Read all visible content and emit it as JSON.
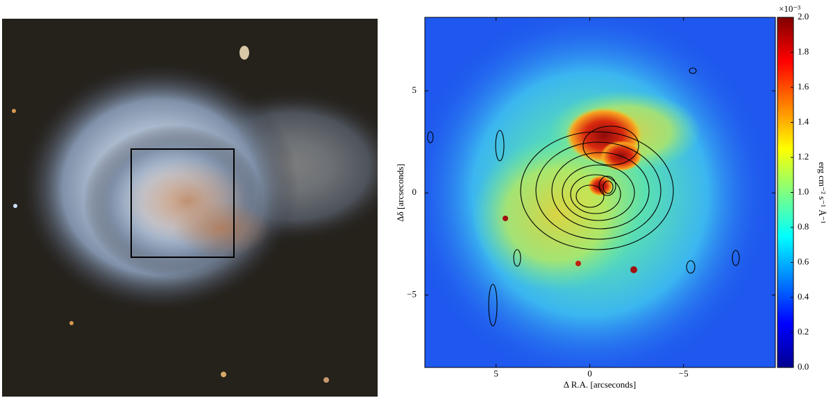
{
  "chart_data": {
    "type": "image",
    "xlabel": "Δ R.A. [arcseconds]",
    "ylabel": "Δδ [arcseconds]",
    "xlim": [
      8.8,
      -9.9
    ],
    "ylim": [
      -8.55,
      8.6
    ],
    "xticks": [
      5,
      0,
      {
        "value": -5,
        "label": "−5"
      }
    ],
    "yticks": [
      {
        "value": -5,
        "label": "−5"
      },
      0,
      5
    ],
    "colorbar": {
      "label": "erg cm⁻² s⁻¹ Å⁻¹",
      "multiplier": "×10⁻³",
      "colormap": "jet",
      "lim": [
        0,
        2.0
      ],
      "ticks": [
        {
          "value": 0,
          "label": "0.0"
        },
        0.2,
        0.4,
        0.6,
        0.8,
        {
          "value": 1,
          "label": "1.0"
        },
        1.2,
        1.4,
        1.6,
        1.8,
        {
          "value": 2,
          "label": "2.0"
        }
      ]
    }
  }
}
